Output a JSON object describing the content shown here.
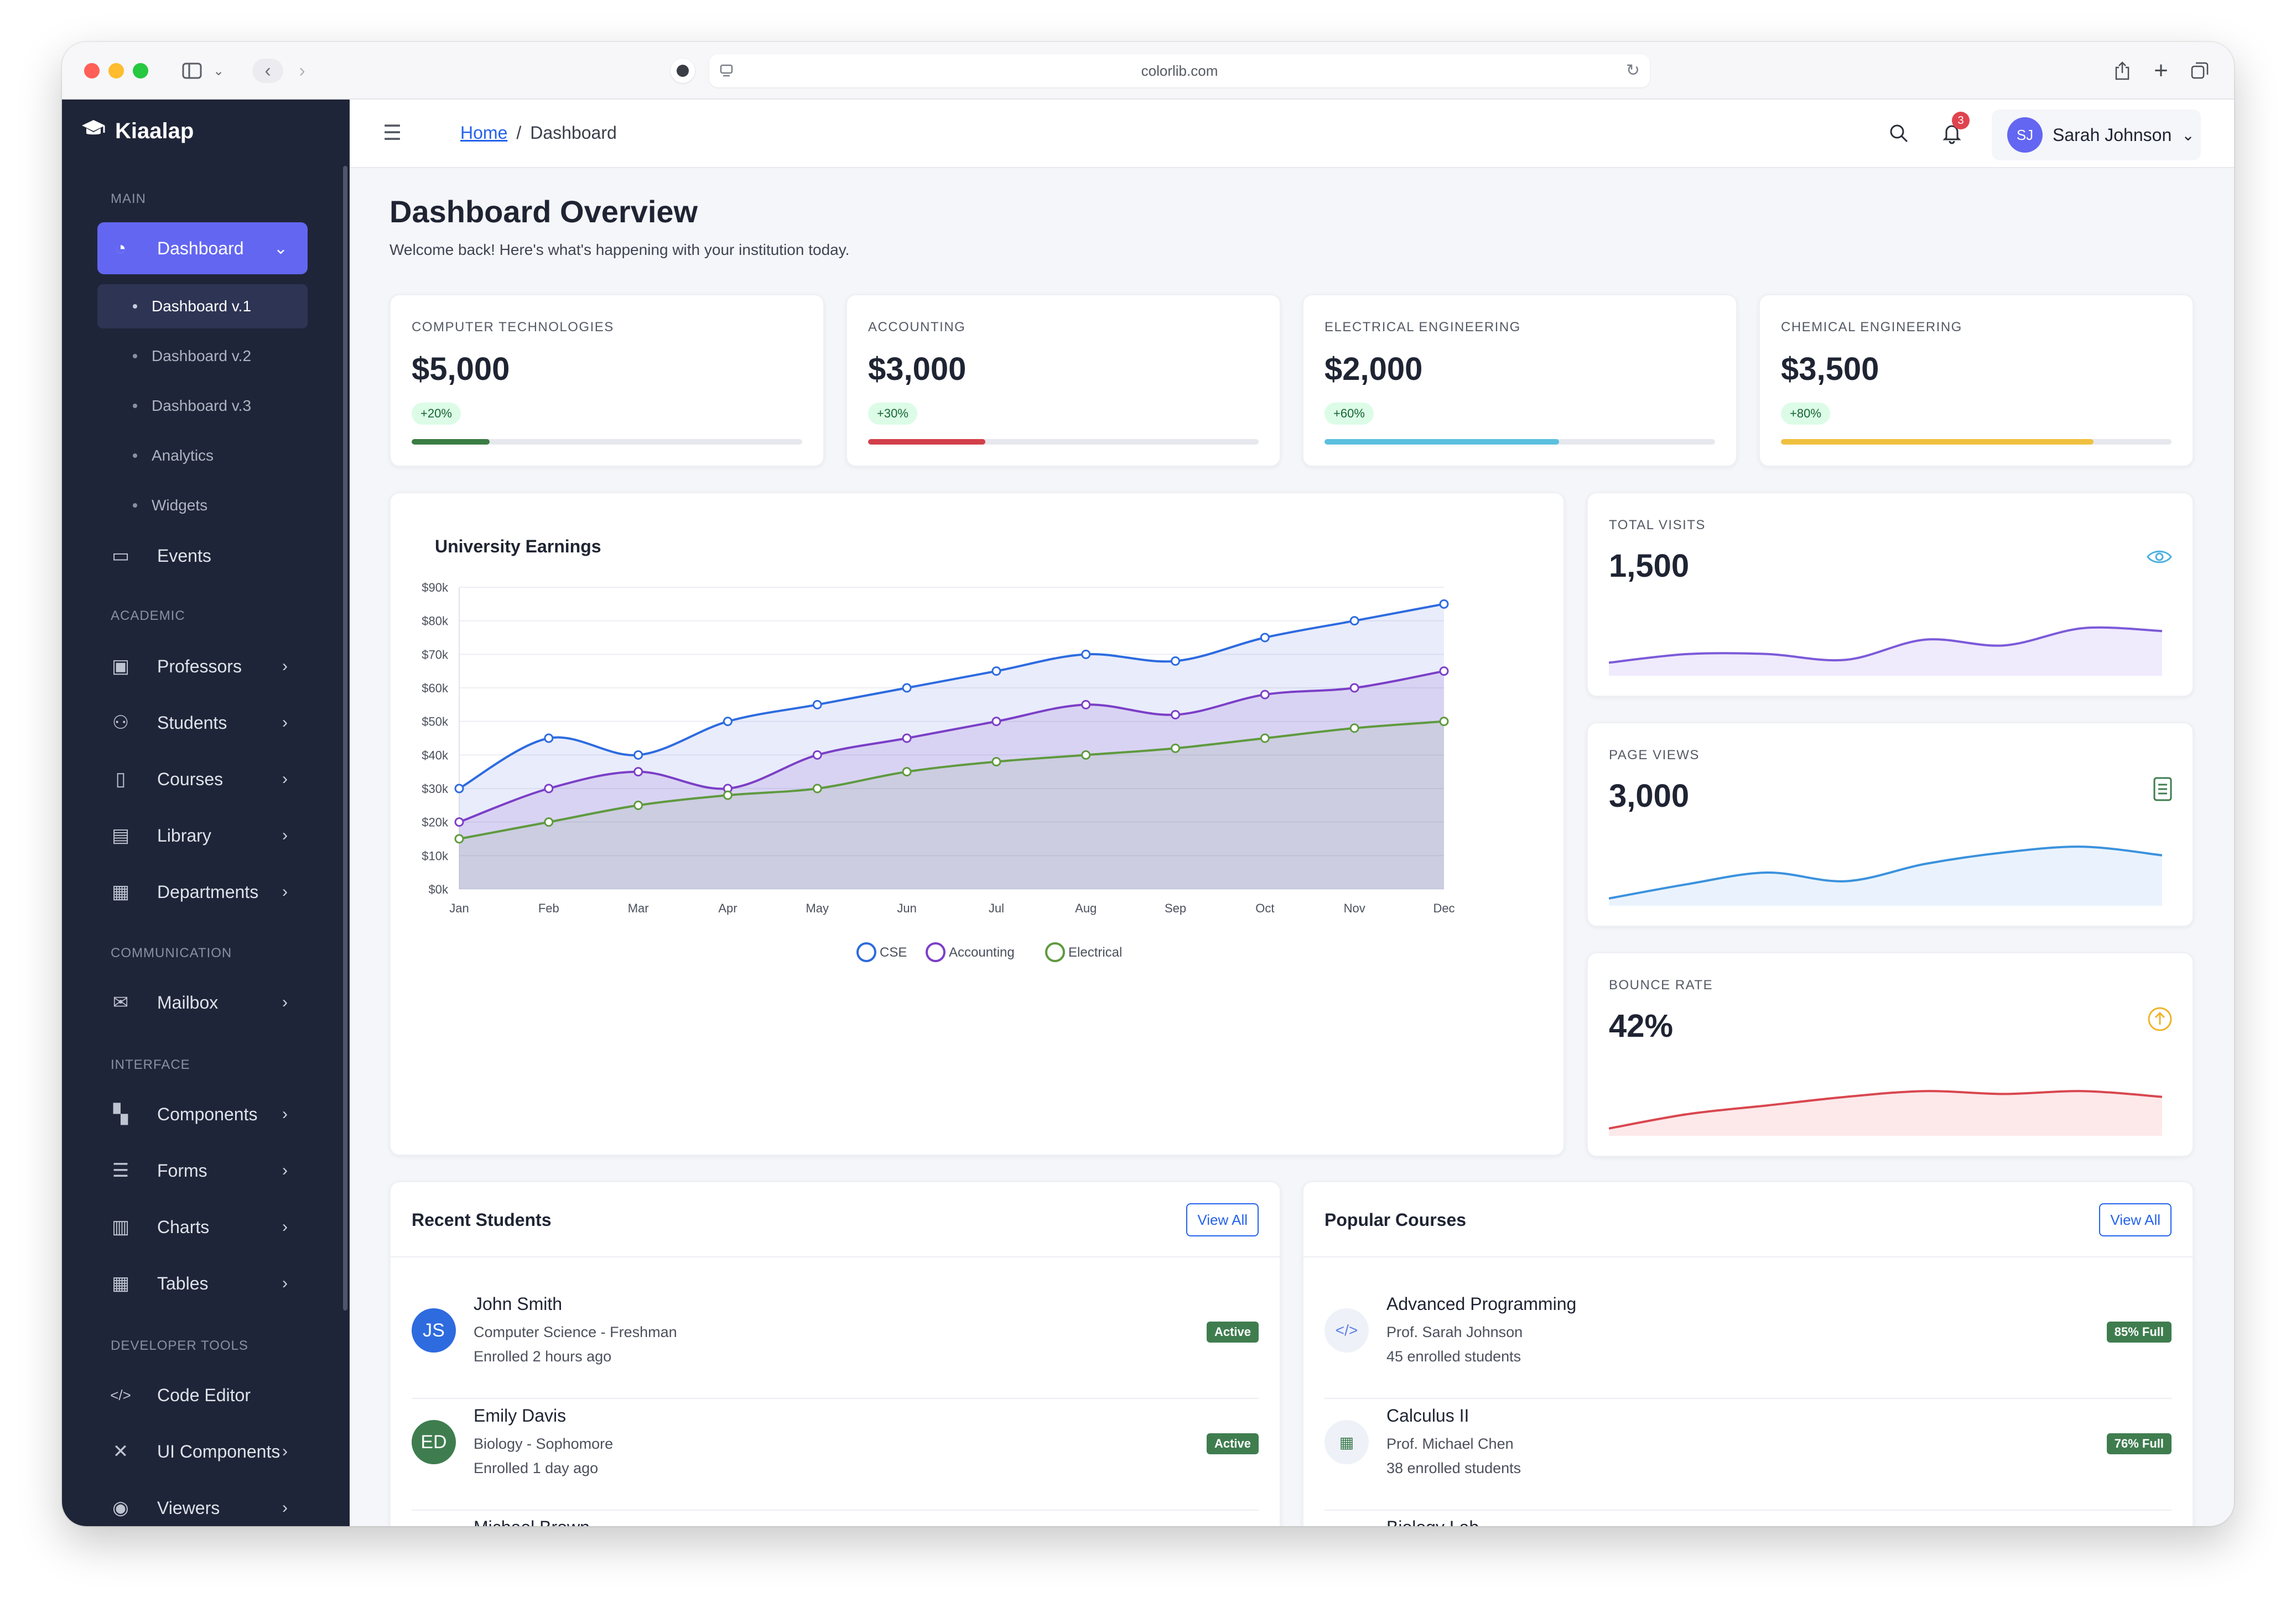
{
  "browser": {
    "url": "colorlib.com",
    "traffic_lights": [
      "#ff5f57",
      "#febc2e",
      "#28c840"
    ]
  },
  "sidebar": {
    "brand": "Kiaalap",
    "sections": {
      "main": "MAIN",
      "academic": "ACADEMIC",
      "communication": "COMMUNICATION",
      "interface": "INTERFACE",
      "developer": "DEVELOPER TOOLS"
    },
    "dashboard": "Dashboard",
    "sub_items": [
      "Dashboard v.1",
      "Dashboard v.2",
      "Dashboard v.3",
      "Analytics",
      "Widgets"
    ],
    "events": "Events",
    "academic_items": [
      "Professors",
      "Students",
      "Courses",
      "Library",
      "Departments"
    ],
    "mailbox": "Mailbox",
    "interface_items": [
      "Components",
      "Forms",
      "Charts",
      "Tables"
    ],
    "developer_items": [
      "Code Editor",
      "UI Components",
      "Viewers"
    ]
  },
  "topbar": {
    "breadcrumb_home": "Home",
    "breadcrumb_sep": "/",
    "breadcrumb_current": "Dashboard",
    "notification_count": "3",
    "user_initials": "SJ",
    "user_name": "Sarah Johnson"
  },
  "page": {
    "title": "Dashboard Overview",
    "subtitle": "Welcome back! Here's what's happening with your institution today."
  },
  "stats": [
    {
      "label": "COMPUTER TECHNOLOGIES",
      "value": "$5,000",
      "change": "+20%",
      "progress": 0.2,
      "color": "#3a7d44"
    },
    {
      "label": "ACCOUNTING",
      "value": "$3,000",
      "change": "+30%",
      "progress": 0.3,
      "color": "#d23f4a"
    },
    {
      "label": "ELECTRICAL ENGINEERING",
      "value": "$2,000",
      "change": "+60%",
      "progress": 0.6,
      "color": "#5bc0de"
    },
    {
      "label": "CHEMICAL ENGINEERING",
      "value": "$3,500",
      "change": "+80%",
      "progress": 0.8,
      "color": "#f0c040"
    }
  ],
  "chart_data": {
    "type": "area",
    "title": "University Earnings",
    "categories": [
      "Jan",
      "Feb",
      "Mar",
      "Apr",
      "May",
      "Jun",
      "Jul",
      "Aug",
      "Sep",
      "Oct",
      "Nov",
      "Dec"
    ],
    "ylim": [
      0,
      90000
    ],
    "y_ticks": [
      "$0k",
      "$10k",
      "$20k",
      "$30k",
      "$40k",
      "$50k",
      "$60k",
      "$70k",
      "$80k",
      "$90k"
    ],
    "grid": true,
    "legend": "bottom",
    "series": [
      {
        "name": "CSE",
        "color": "#2d6bdf",
        "values": [
          30000,
          45000,
          40000,
          50000,
          55000,
          60000,
          65000,
          70000,
          68000,
          75000,
          80000,
          85000
        ]
      },
      {
        "name": "Accounting",
        "color": "#7b3fc7",
        "values": [
          20000,
          30000,
          35000,
          30000,
          40000,
          45000,
          50000,
          55000,
          52000,
          58000,
          60000,
          65000
        ]
      },
      {
        "name": "Electrical",
        "color": "#5f9a3f",
        "values": [
          15000,
          20000,
          25000,
          28000,
          30000,
          35000,
          38000,
          40000,
          42000,
          45000,
          48000,
          50000
        ]
      }
    ]
  },
  "mini_stats": [
    {
      "label": "TOTAL VISITS",
      "value": "1,500",
      "icon": "eye-icon",
      "color": "#7c5ad9",
      "fill": "#efeafc",
      "icon_color": "#4fb0e0",
      "spark": [
        0.15,
        0.3,
        0.3,
        0.2,
        0.55,
        0.45,
        0.75,
        0.7
      ]
    },
    {
      "label": "PAGE VIEWS",
      "value": "3,000",
      "icon": "document-icon",
      "color": "#3b92dd",
      "fill": "#eaf3fd",
      "icon_color": "#3f7d4f",
      "spark": [
        0.05,
        0.3,
        0.5,
        0.35,
        0.65,
        0.85,
        0.95,
        0.8
      ]
    },
    {
      "label": "BOUNCE RATE",
      "value": "42%",
      "icon": "arrow-up-circle-icon",
      "color": "#d9474f",
      "fill": "#fde8ea",
      "icon_color": "#f0b429",
      "spark": [
        0.05,
        0.3,
        0.45,
        0.6,
        0.7,
        0.65,
        0.7,
        0.6
      ]
    }
  ],
  "students": {
    "title": "Recent Students",
    "view_all": "View All",
    "items": [
      {
        "initials": "JS",
        "color": "#2d6bdf",
        "name": "John Smith",
        "detail": "Computer Science - Freshman",
        "time": "Enrolled 2 hours ago",
        "status": "Active"
      },
      {
        "initials": "ED",
        "color": "#3f7d4f",
        "name": "Emily Davis",
        "detail": "Biology - Sophomore",
        "time": "Enrolled 1 day ago",
        "status": "Active"
      },
      {
        "initials": "",
        "color": "#d9474f",
        "name": "Michael Brown",
        "detail": "",
        "time": "",
        "status": ""
      }
    ]
  },
  "courses": {
    "title": "Popular Courses",
    "view_all": "View All",
    "items": [
      {
        "icon": "code-icon",
        "glyph": "</>",
        "icon_color": "#5b7ee5",
        "name": "Advanced Programming",
        "prof": "Prof. Sarah Johnson",
        "students": "45 enrolled students",
        "status": "85% Full"
      },
      {
        "icon": "calculator-icon",
        "glyph": "▦",
        "icon_color": "#3f7d4f",
        "name": "Calculus II",
        "prof": "Prof. Michael Chen",
        "students": "38 enrolled students",
        "status": "76% Full"
      },
      {
        "icon": "flask-icon",
        "glyph": "",
        "icon_color": "#5b9fd8",
        "name": "Biology Lab",
        "prof": "",
        "students": "",
        "status": ""
      }
    ]
  }
}
